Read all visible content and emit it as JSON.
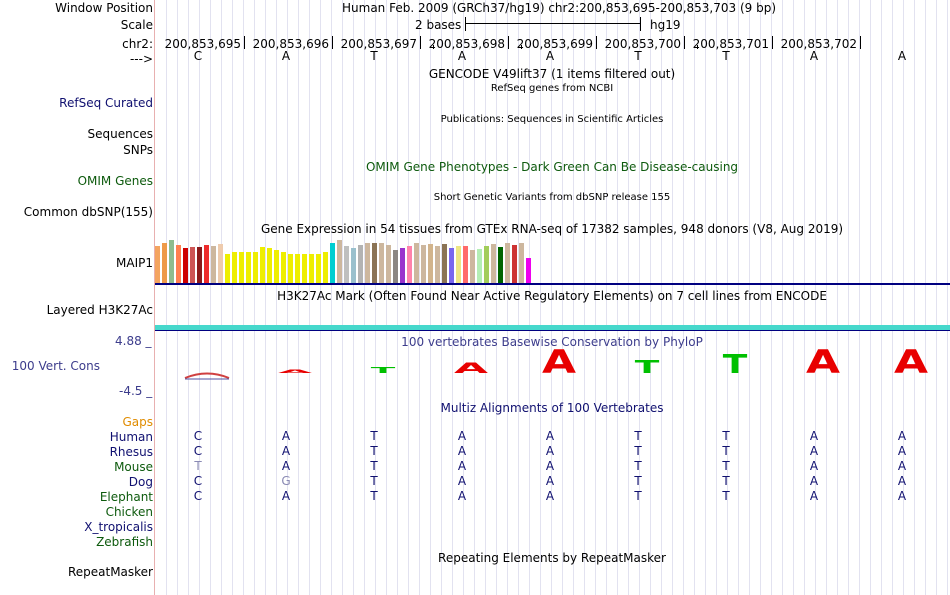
{
  "header": {
    "window_position_label": "Window Position",
    "window_position_value": "Human Feb. 2009 (GRCh37/hg19)   chr2:200,853,695-200,853,703 (9 bp)",
    "scale_label": "Scale",
    "scale_text": "2 bases",
    "scale_assembly": "hg19",
    "chrom_label": "chr2:",
    "strand_label": "--->",
    "coords": [
      "200,853,695",
      "200,853,696",
      "200,853,697",
      "200,853,698",
      "200,853,699",
      "200,853,700",
      "200,853,701",
      "200,853,702"
    ],
    "sequence": [
      "C",
      "A",
      "T",
      "A",
      "A",
      "T",
      "T",
      "A",
      "A"
    ]
  },
  "tracks": {
    "gencode_title": "GENCODE V49lift37 (1 items filtered out)",
    "refseq_label": "RefSeq Curated",
    "refseq_title": "RefSeq genes from NCBI",
    "publications_title": "Publications: Sequences in Scientific Articles",
    "sequences_label": "Sequences",
    "snps_label": "SNPs",
    "omim_title": "OMIM Gene Phenotypes - Dark Green Can Be Disease-causing",
    "omim_label": "OMIM Genes",
    "dbsnp_title": "Short Genetic Variants from dbSNP release 155",
    "dbsnp_label": "Common dbSNP(155)",
    "gtex_title": "Gene Expression in 54 tissues from GTEx RNA-seq of 17382 samples, 948 donors (V8, Aug 2019)",
    "gtex_label": "MAIP1",
    "h3k27ac_title": "H3K27Ac Mark (Often Found Near Active Regulatory Elements) on 7 cell lines from ENCODE",
    "h3k27ac_label": "Layered H3K27Ac",
    "cons_title": "100 vertebrates Basewise Conservation by PhyloP",
    "cons_label": "100 Vert. Cons",
    "cons_max": "4.88 _",
    "cons_min": "-4.5 _",
    "multiz_title": "Multiz Alignments of 100 Vertebrates",
    "gaps_label": "Gaps",
    "repeat_title": "Repeating Elements by RepeatMasker",
    "repeat_label": "RepeatMasker"
  },
  "alignment": {
    "species": [
      {
        "name": "Human",
        "bases": [
          "C",
          "A",
          "T",
          "A",
          "A",
          "T",
          "T",
          "A",
          "A"
        ]
      },
      {
        "name": "Rhesus",
        "bases": [
          "C",
          "A",
          "T",
          "A",
          "A",
          "T",
          "T",
          "A",
          "A"
        ]
      },
      {
        "name": "Mouse",
        "bases": [
          "T",
          "A",
          "T",
          "A",
          "A",
          "T",
          "T",
          "A",
          "A"
        ]
      },
      {
        "name": "Dog",
        "bases": [
          "C",
          "G",
          "T",
          "A",
          "A",
          "T",
          "T",
          "A",
          "A"
        ]
      },
      {
        "name": "Elephant",
        "bases": [
          "C",
          "A",
          "T",
          "A",
          "A",
          "T",
          "T",
          "A",
          "A"
        ]
      },
      {
        "name": "Chicken",
        "bases": []
      },
      {
        "name": "X_tropicalis",
        "bases": []
      },
      {
        "name": "Zebrafish",
        "bases": []
      }
    ]
  },
  "gtex": {
    "values": [
      0.45,
      0.48,
      0.52,
      0.46,
      0.42,
      0.44,
      0.43,
      0.46,
      0.45,
      0.47,
      0.35,
      0.37,
      0.37,
      0.37,
      0.37,
      0.44,
      0.42,
      0.4,
      0.37,
      0.35,
      0.35,
      0.35,
      0.35,
      0.35,
      0.37,
      0.48,
      0.52,
      0.45,
      0.42,
      0.46,
      0.48,
      0.48,
      0.48,
      0.46,
      0.4,
      0.42,
      0.45,
      0.48,
      0.46,
      0.47,
      0.45,
      0.47,
      0.42,
      0.45,
      0.45,
      0.4,
      0.41,
      0.45,
      0.47,
      0.44,
      0.48,
      0.46,
      0.48,
      0.3
    ],
    "colors": [
      "#f4a460",
      "#ee9a49",
      "#8fbc8f",
      "#ff7f50",
      "#cd0000",
      "#cd5555",
      "#8b1a1a",
      "#ee2c2c",
      "#cdb79e",
      "#eecbad",
      "#eeee00",
      "#eeee00",
      "#eeee00",
      "#eeee00",
      "#eeee00",
      "#eeee00",
      "#eeee00",
      "#eeee00",
      "#eeee00",
      "#eeee00",
      "#eeee00",
      "#eeee00",
      "#eeee00",
      "#eeee00",
      "#eeee00",
      "#00ced1",
      "#cdb79e",
      "#bfbfbf",
      "#9ac0cd",
      "#b3b3b3",
      "#cdb79e",
      "#8b7355",
      "#cdb79e",
      "#cdb79e",
      "#8b8682",
      "#9a32cd",
      "#ff82ab",
      "#cdb79e",
      "#cdb79e",
      "#d2b48c",
      "#cdb79e",
      "#8b7355",
      "#7a67ee",
      "#eee685",
      "#ff6a6a",
      "#cdb79e",
      "#b4eeb4",
      "#a2cd5a",
      "#cdb79e",
      "#006400",
      "#cdb79e",
      "#cd3333",
      "#cdb79e",
      "#ee00ee"
    ]
  },
  "conservation": {
    "scores": [
      -0.3,
      0.2,
      0.5,
      0.9,
      2.0,
      1.1,
      1.6,
      2.0,
      2.0
    ],
    "letters": [
      "C",
      "A",
      "T",
      "A",
      "A",
      "T",
      "T",
      "A",
      "A"
    ]
  },
  "colors": {
    "navy": "#101070",
    "conservation_pos_a": "#e80000",
    "conservation_pos_t": "#00c000",
    "h3k27ac": "#46d8cc",
    "divider": "#000080"
  }
}
